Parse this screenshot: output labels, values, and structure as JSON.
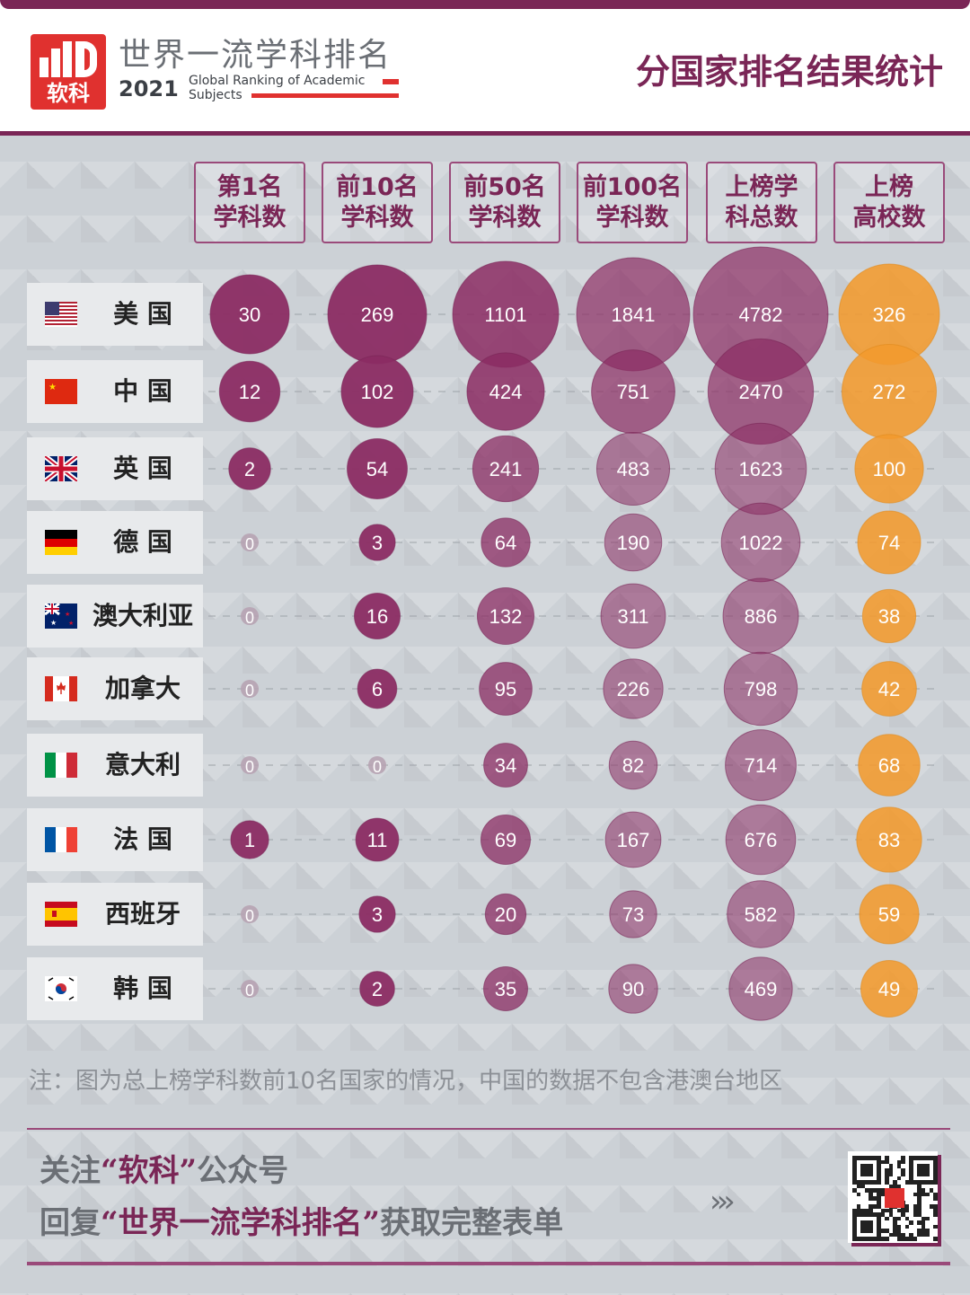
{
  "header": {
    "logo_text": "软科",
    "brand_title": "世界一流学科排名",
    "brand_year": "2021",
    "brand_sub": "Global Ranking of Academic Subjects",
    "page_title": "分国家排名结果统计"
  },
  "colors": {
    "primary": "#7a2656",
    "bubble": "#8b2c63",
    "orange": "#f29a2e",
    "zero": "#b7a3b2",
    "accent_red": "#e0312f"
  },
  "columns": [
    {
      "line1": "第1名",
      "line2": "学科数"
    },
    {
      "line1": "前10名",
      "line2": "学科数"
    },
    {
      "line1": "前50名",
      "line2": "学科数"
    },
    {
      "line1": "前100名",
      "line2": "学科数"
    },
    {
      "line1": "上榜学",
      "line2": "科总数"
    },
    {
      "line1": "上榜",
      "line2": "高校数"
    }
  ],
  "countries": [
    {
      "name": "美 国",
      "flag": "us-flag-icon"
    },
    {
      "name": "中 国",
      "flag": "cn-flag-icon"
    },
    {
      "name": "英 国",
      "flag": "uk-flag-icon"
    },
    {
      "name": "德 国",
      "flag": "de-flag-icon"
    },
    {
      "name": "澳大利亚",
      "flag": "au-flag-icon"
    },
    {
      "name": "加拿大",
      "flag": "ca-flag-icon"
    },
    {
      "name": "意大利",
      "flag": "it-flag-icon"
    },
    {
      "name": "法 国",
      "flag": "fr-flag-icon"
    },
    {
      "name": "西班牙",
      "flag": "es-flag-icon"
    },
    {
      "name": "韩 国",
      "flag": "kr-flag-icon"
    }
  ],
  "chart_data": {
    "type": "table",
    "title": "分国家排名结果统计",
    "categories": [
      "美国",
      "中国",
      "英国",
      "德国",
      "澳大利亚",
      "加拿大",
      "意大利",
      "法国",
      "西班牙",
      "韩国"
    ],
    "series": [
      {
        "name": "第1名学科数",
        "values": [
          30,
          12,
          2,
          0,
          0,
          0,
          0,
          1,
          0,
          0
        ]
      },
      {
        "name": "前10名学科数",
        "values": [
          269,
          102,
          54,
          3,
          16,
          6,
          0,
          11,
          3,
          2
        ]
      },
      {
        "name": "前50名学科数",
        "values": [
          1101,
          424,
          241,
          64,
          132,
          95,
          34,
          69,
          20,
          35
        ]
      },
      {
        "name": "前100名学科数",
        "values": [
          1841,
          751,
          483,
          190,
          311,
          226,
          82,
          167,
          73,
          90
        ]
      },
      {
        "name": "上榜学科总数",
        "values": [
          4782,
          2470,
          1623,
          1022,
          886,
          798,
          714,
          676,
          582,
          469
        ]
      },
      {
        "name": "上榜高校数",
        "values": [
          326,
          272,
          100,
          74,
          38,
          42,
          68,
          83,
          59,
          49
        ]
      }
    ]
  },
  "note": "注：图为总上榜学科数前10名国家的情况，中国的数据不包含港澳台地区",
  "footer": {
    "line1_pre": "关注",
    "line1_hl": "“软科”",
    "line1_post": "公众号",
    "line2_pre": "回复",
    "line2_hl": "“世界一流学科排名”",
    "line2_post": "获取完整表单",
    "arrows": "›››"
  }
}
